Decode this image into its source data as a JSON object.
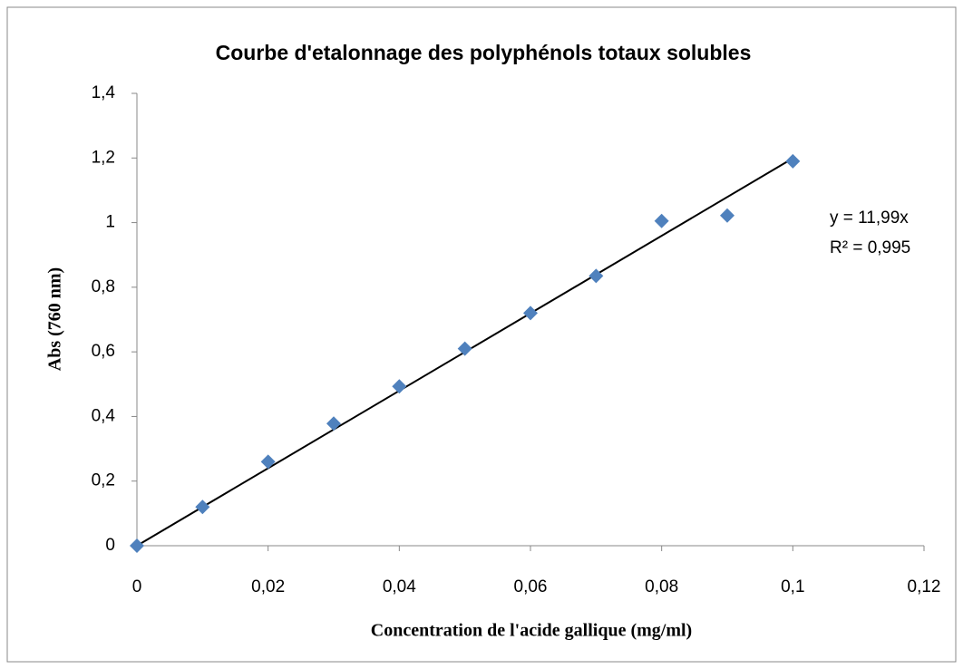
{
  "chart_data": {
    "type": "scatter",
    "title": "Courbe d'etalonnage des polyphénols totaux solubles",
    "x_label": "Concentration  de l'acide gallique (mg/ml)",
    "y_label": "Abs (760 nm)",
    "series": [
      {
        "name": "Abs",
        "color": "#4f81bd",
        "x": [
          0,
          0.01,
          0.02,
          0.03,
          0.04,
          0.05,
          0.06,
          0.07,
          0.08,
          0.09,
          0.1
        ],
        "values": [
          0,
          0.12,
          0.26,
          0.378,
          0.493,
          0.61,
          0.72,
          0.835,
          1.005,
          1.022,
          1.19
        ]
      }
    ],
    "trendline": {
      "slope": 11.99,
      "xrange": [
        0,
        0.1
      ],
      "color": "#000000",
      "equation": "y = 11,99x",
      "r2": "R² = 0,995"
    },
    "xlim": [
      0,
      0.12
    ],
    "xticks": [
      0,
      {
        "value": 0.02,
        "label": "0,02"
      },
      {
        "value": 0.04,
        "label": "0,04"
      },
      {
        "value": 0.06,
        "label": "0,06"
      },
      {
        "value": 0.08,
        "label": "0,08"
      },
      {
        "value": 0.1,
        "label": "0,1"
      },
      {
        "value": 0.12,
        "label": "0,12"
      }
    ],
    "ylim": [
      0,
      1.4
    ],
    "yticks": [
      0,
      {
        "value": 0.2,
        "label": "0,2"
      },
      {
        "value": 0.4,
        "label": "0,4"
      },
      {
        "value": 0.6,
        "label": "0,6"
      },
      {
        "value": 0.8,
        "label": "0,8"
      },
      1,
      {
        "value": 1.2,
        "label": "1,2"
      },
      {
        "value": 1.4,
        "label": "1,4"
      }
    ],
    "grid": false
  }
}
